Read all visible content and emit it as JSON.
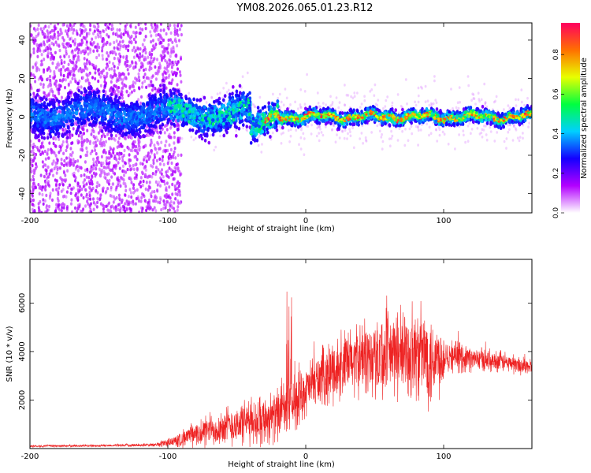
{
  "title": "YM08.2026.065.01.23.R12",
  "colors": {
    "axis": "#000000",
    "snr_line": "#ee2222",
    "title": "#000000"
  },
  "chart_data": [
    {
      "type": "heatmap",
      "name": "spectrogram",
      "xlabel": "Height of straight line (km)",
      "ylabel": "Frequency (Hz)",
      "xlim": [
        -200,
        164
      ],
      "ylim": [
        -50,
        49
      ],
      "xticks": [
        -200,
        -100,
        0,
        100
      ],
      "yticks": [
        -40,
        -20,
        0,
        20,
        40
      ],
      "description_values": "dense scatter; noisy broadband below -90 km, narrow band near 0 Hz above -30 km",
      "colorbar": {
        "label": "Normalized spectral amplitude",
        "range": [
          0.0,
          0.96
        ],
        "ticks": [
          0.0,
          0.2,
          0.4,
          0.6,
          0.8
        ],
        "tick_labels": [
          "0.0",
          "0.2",
          "0.4",
          "0.6",
          "0.8"
        ],
        "colormap": [
          "#ffffff",
          "#b300ff",
          "#1400ff",
          "#00d0ff",
          "#00ff40",
          "#e8ff00",
          "#ff7000",
          "#ff0060"
        ]
      }
    },
    {
      "type": "line",
      "name": "snr",
      "xlabel": "Height of straight line (km)",
      "ylabel": "SNR (10 * v/v)",
      "xlim": [
        -200,
        164
      ],
      "ylim": [
        0,
        7800
      ],
      "xticks": [
        -200,
        -100,
        0,
        100
      ],
      "yticks": [
        2000,
        4000,
        6000
      ],
      "envelope": {
        "x": [
          -200,
          -150,
          -110,
          -95,
          -80,
          -60,
          -40,
          -25,
          -15,
          -10,
          0,
          10,
          20,
          30,
          40,
          60,
          80,
          90,
          100,
          101,
          120,
          140,
          164
        ],
        "base": [
          100,
          120,
          150,
          300,
          600,
          900,
          1100,
          1300,
          1500,
          1800,
          2400,
          2900,
          3200,
          3500,
          3700,
          3900,
          3900,
          3800,
          3700,
          3900,
          3700,
          3600,
          3350
        ],
        "spread": [
          60,
          60,
          80,
          300,
          600,
          900,
          1100,
          1200,
          1300,
          1300,
          1200,
          1300,
          1500,
          1600,
          1700,
          2000,
          2200,
          2400,
          1500,
          800,
          600,
          500,
          400
        ]
      }
    }
  ]
}
